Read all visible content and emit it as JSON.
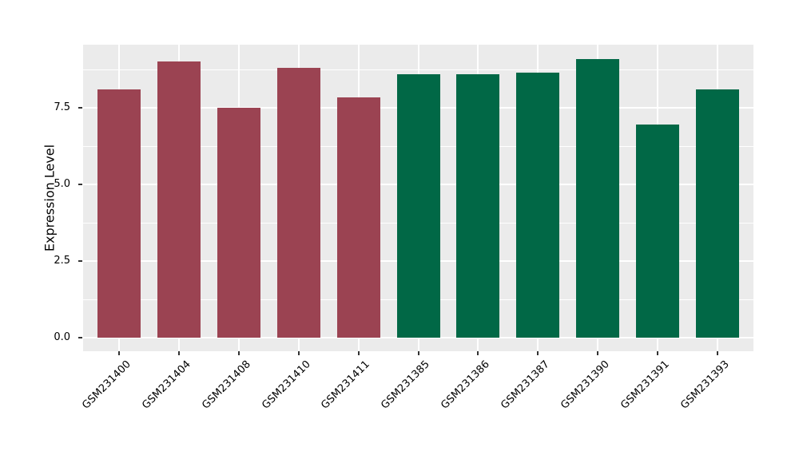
{
  "chart_data": {
    "type": "bar",
    "title": "",
    "xlabel": "",
    "ylabel": "Expression Level",
    "categories": [
      "GSM231400",
      "GSM231404",
      "GSM231408",
      "GSM231410",
      "GSM231411",
      "GSM231385",
      "GSM231386",
      "GSM231387",
      "GSM231390",
      "GSM231391",
      "GSM231393"
    ],
    "values": [
      8.1,
      9.0,
      7.5,
      8.8,
      7.85,
      8.6,
      8.6,
      8.65,
      9.1,
      6.95,
      8.1
    ],
    "groups": [
      "group1",
      "group1",
      "group1",
      "group1",
      "group1",
      "group2",
      "group2",
      "group2",
      "group2",
      "group2",
      "group2"
    ],
    "group_colors": {
      "group1": "#9B4352",
      "group2": "#016846"
    },
    "ylim": [
      0,
      9.56
    ],
    "yticks": [
      0.0,
      2.5,
      5.0,
      7.5
    ],
    "ytick_labels": [
      "0.0",
      "2.5",
      "5.0",
      "7.5"
    ],
    "yminor_ticks": [
      1.25,
      3.75,
      6.25,
      8.75
    ],
    "grid": "on",
    "legend": "none",
    "panel_background": "#EBEBEB",
    "grid_color": "#FFFFFF",
    "tick_color": "#333333",
    "x_label_rotation_deg": 45
  }
}
